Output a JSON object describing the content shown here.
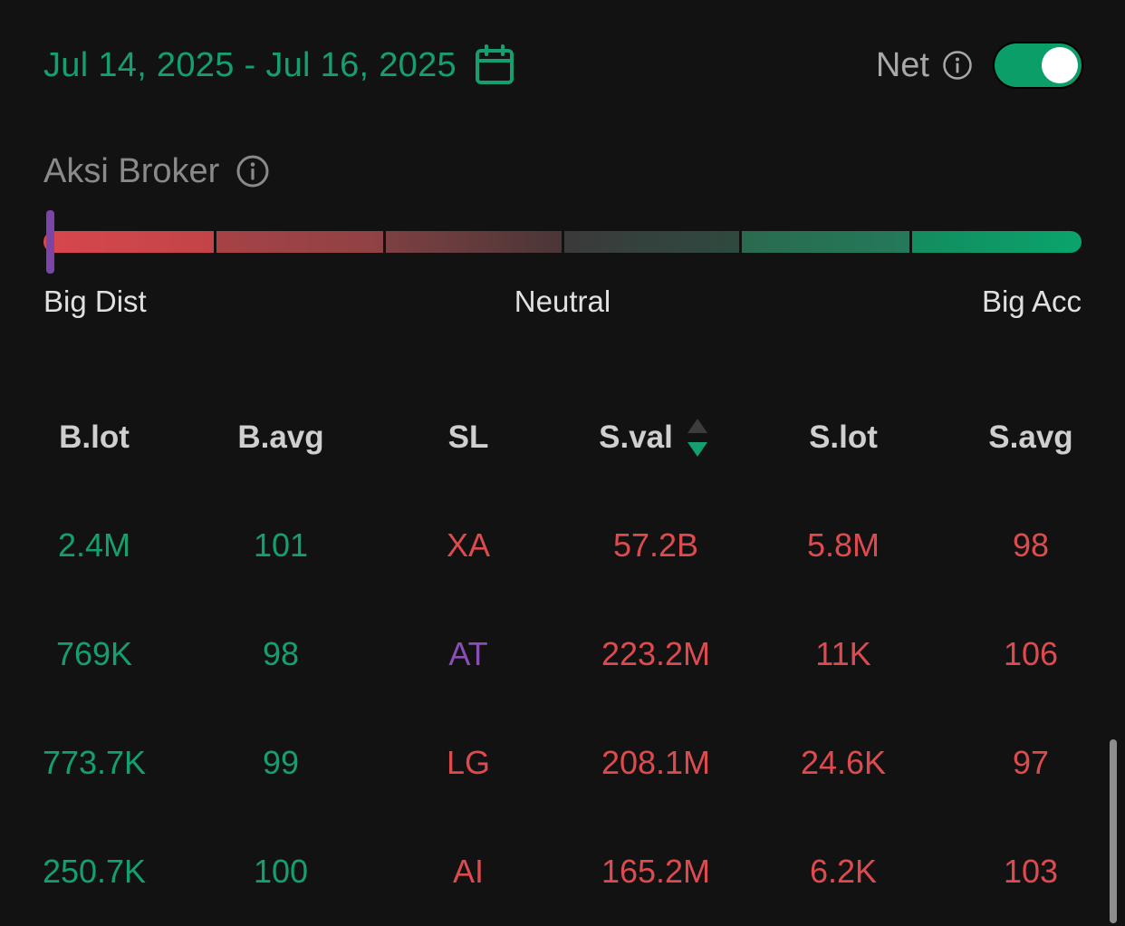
{
  "header": {
    "date_range": "Jul 14, 2025 - Jul 16, 2025",
    "calendar_icon": "calendar-icon",
    "net_label": "Net",
    "net_info_icon": "info-icon",
    "net_toggle_on": true
  },
  "aksi_broker": {
    "title": "Aksi Broker",
    "info_icon": "info-icon",
    "gauge_level": 0.01,
    "scale": {
      "left": "Big Dist",
      "middle": "Neutral",
      "right": "Big Acc"
    },
    "colors": {
      "distribution": "#d7474c",
      "neutral": "#3a3a3a",
      "accumulation": "#0aa46d",
      "marker": "#7b44a7"
    }
  },
  "table": {
    "columns": [
      "B.lot",
      "B.avg",
      "SL",
      "S.val",
      "S.lot",
      "S.avg"
    ],
    "sorted_column": "S.val",
    "sort_direction": "desc",
    "rows": [
      {
        "b_lot": "2.4M",
        "b_avg": "101",
        "sl": "XA",
        "sl_color": "red",
        "s_val": "57.2B",
        "s_lot": "5.8M",
        "s_avg": "98"
      },
      {
        "b_lot": "769K",
        "b_avg": "98",
        "sl": "AT",
        "sl_color": "purple",
        "s_val": "223.2M",
        "s_lot": "11K",
        "s_avg": "106"
      },
      {
        "b_lot": "773.7K",
        "b_avg": "99",
        "sl": "LG",
        "sl_color": "red",
        "s_val": "208.1M",
        "s_lot": "24.6K",
        "s_avg": "97"
      },
      {
        "b_lot": "250.7K",
        "b_avg": "100",
        "sl": "AI",
        "sl_color": "red",
        "s_val": "165.2M",
        "s_lot": "6.2K",
        "s_avg": "103"
      }
    ]
  },
  "colors": {
    "background": "#121212",
    "buy": "#14a06e",
    "sell": "#dd4b4f",
    "foreign": "#8a4fb4"
  }
}
